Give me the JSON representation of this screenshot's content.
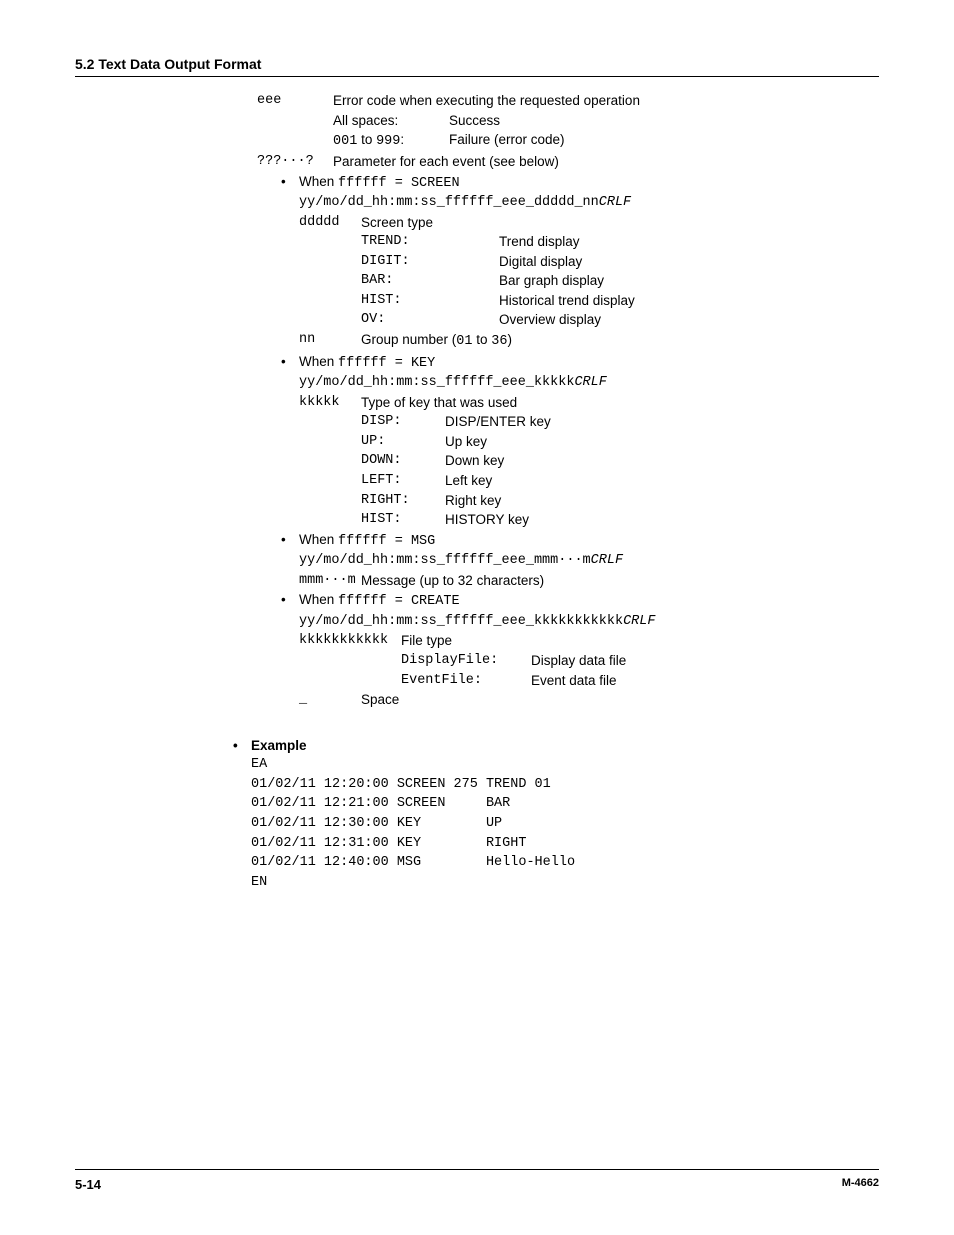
{
  "header": {
    "title": "5.2  Text Data Output Format"
  },
  "eee": {
    "key": "eee",
    "desc": "Error code when executing the requested operation",
    "rows": [
      {
        "k": "All spaces:",
        "v": "Success",
        "mono_k": false
      },
      {
        "k": "001",
        "mid": " to ",
        "k2": "999",
        "suffix": ":",
        "v": "Failure (error code)",
        "mono_k": true
      }
    ]
  },
  "qmark": {
    "key": "???···?",
    "desc": "Parameter for each event (see below)"
  },
  "cases": [
    {
      "when_prefix": "When ",
      "when_code": "ffffff = SCREEN",
      "syntax_plain": "yy/mo/dd_hh:mm:ss_ffffff_eee_ddddd_nn",
      "crlf": "CRLF",
      "defs": [
        {
          "key": "ddddd",
          "label": "Screen type",
          "rows": [
            {
              "k": "TREND:",
              "v": "Trend display"
            },
            {
              "k": "DIGIT:",
              "v": "Digital display"
            },
            {
              "k": "BAR:",
              "v": "Bar graph display"
            },
            {
              "k": "HIST:",
              "v": "Historical trend display"
            },
            {
              "k": "OV:",
              "v": "Overview display"
            }
          ],
          "col1_width": 138
        },
        {
          "key": "nn",
          "label_pre": "Group number (",
          "label_mono1": "01",
          "label_mid": " to ",
          "label_mono2": "36",
          "label_post": ")"
        }
      ]
    },
    {
      "when_prefix": "When ",
      "when_code": "ffffff = KEY",
      "syntax_plain": "yy/mo/dd_hh:mm:ss_ffffff_eee_kkkkk",
      "crlf": "CRLF",
      "defs": [
        {
          "key": "kkkkk",
          "label": "Type of key that was used",
          "rows": [
            {
              "k": "DISP:",
              "v": "DISP/ENTER key"
            },
            {
              "k": "UP:",
              "v": "Up key"
            },
            {
              "k": "DOWN:",
              "v": "Down key"
            },
            {
              "k": "LEFT:",
              "v": "Left key"
            },
            {
              "k": "RIGHT:",
              "v": "Right key"
            },
            {
              "k": "HIST:",
              "v": "HISTORY key"
            }
          ],
          "col1_width": 84
        }
      ]
    },
    {
      "when_prefix": "When ",
      "when_code": "ffffff = MSG",
      "syntax_plain": "yy/mo/dd_hh:mm:ss_ffffff_eee_mmm···m",
      "crlf": "CRLF",
      "defs": [
        {
          "key": "mmm···m",
          "label": "Message (up to 32 characters)"
        }
      ]
    },
    {
      "when_prefix": "When ",
      "when_code": "ffffff = CREATE",
      "syntax_plain": "yy/mo/dd_hh:mm:ss_ffffff_eee_kkkkkkkkkkk",
      "crlf": "CRLF",
      "defs": [
        {
          "key": "kkkkkkkkkkk",
          "label": "File type",
          "rows": [
            {
              "k": "DisplayFile:",
              "v": "Display data file"
            },
            {
              "k": "EventFile:",
              "v": "Event data file"
            }
          ],
          "col1_width": 130
        }
      ]
    }
  ],
  "underscore": {
    "key": "_",
    "label": "Space"
  },
  "example": {
    "heading": "Example",
    "lines": [
      "EA",
      "01/02/11 12:20:00 SCREEN 275 TREND 01",
      "01/02/11 12:21:00 SCREEN     BAR",
      "01/02/11 12:30:00 KEY        UP",
      "01/02/11 12:31:00 KEY        RIGHT",
      "01/02/11 12:40:00 MSG        Hello-Hello",
      "EN"
    ]
  },
  "footer": {
    "left": "5-14",
    "right": "M-4662"
  }
}
